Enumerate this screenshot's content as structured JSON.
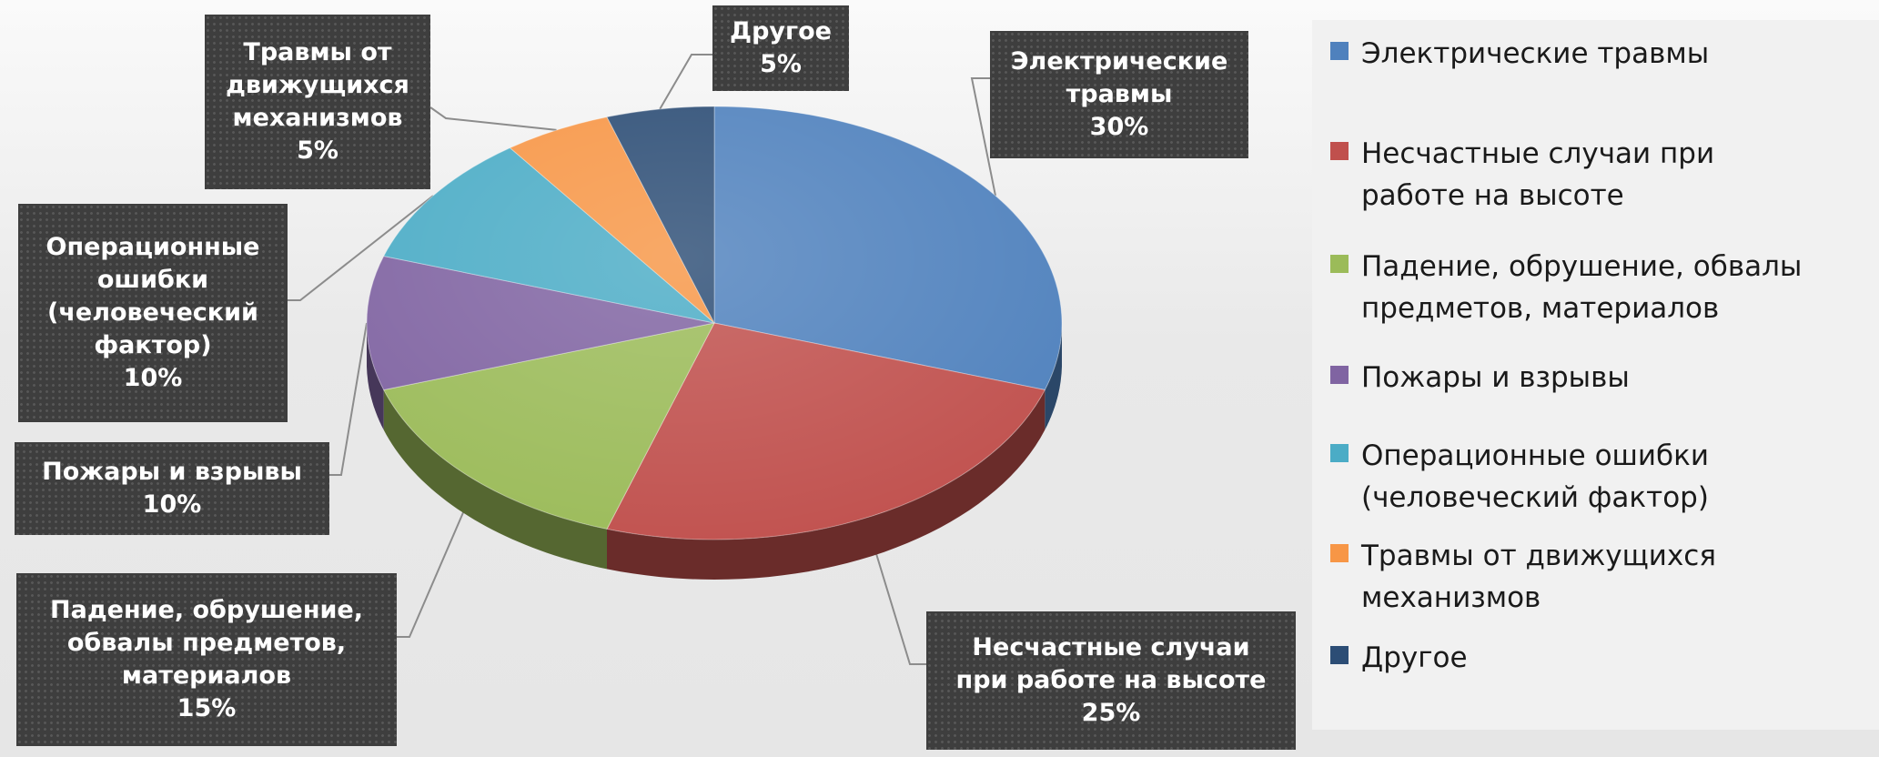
{
  "chart_data": {
    "type": "pie",
    "style": "3d",
    "title": "",
    "slices": [
      {
        "label": "Электрические травмы",
        "data_label": "Электрические\nтравмы",
        "legend_label": "Электрические травмы",
        "value": 30,
        "value_text": "30%",
        "color": "#4F81BD"
      },
      {
        "label": "Несчастные случаи при работе на высоте",
        "data_label": "Несчастные случаи\nпри работе на высоте",
        "legend_label": "Несчастные случаи при\nработе на высоте",
        "value": 25,
        "value_text": "25%",
        "color": "#C0504D"
      },
      {
        "label": "Падение, обрушение, обвалы предметов, материалов",
        "data_label": "Падение, обрушение,\nобвалы предметов,\nматериалов",
        "legend_label": "Падение, обрушение, обвалы\nпредметов, материалов",
        "value": 15,
        "value_text": "15%",
        "color": "#9BBB59"
      },
      {
        "label": "Пожары и взрывы",
        "data_label": "Пожары и взрывы",
        "legend_label": "Пожары и взрывы",
        "value": 10,
        "value_text": "10%",
        "color": "#8064A2"
      },
      {
        "label": "Операционные ошибки (человеческий фактор)",
        "data_label": "Операционные\nошибки\n(человеческий\nфактор)",
        "legend_label": "Операционные ошибки\n(человеческий фактор)",
        "value": 10,
        "value_text": "10%",
        "color": "#4BACC6"
      },
      {
        "label": "Травмы от движущихся механизмов",
        "data_label": "Травмы от\nдвижущихся\nмеханизмов",
        "legend_label": "Травмы от движущихся\nмеханизмов",
        "value": 5,
        "value_text": "5%",
        "color": "#F79646"
      },
      {
        "label": "Другое",
        "data_label": "Другое",
        "legend_label": "Другое",
        "value": 5,
        "value_text": "5%",
        "color": "#2C4D75"
      }
    ],
    "legend_position": "right",
    "label_style": "dark boxes with leader lines"
  }
}
